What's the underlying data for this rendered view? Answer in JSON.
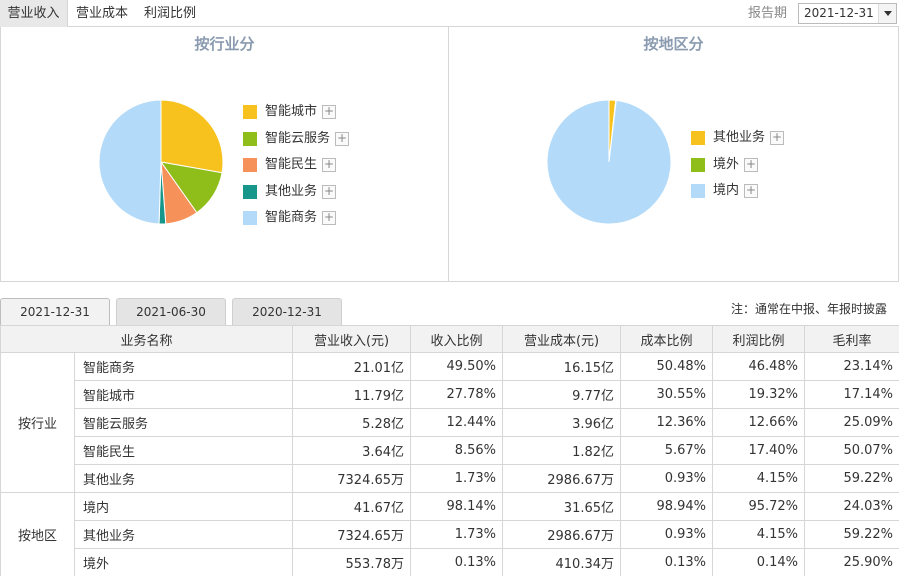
{
  "top_tabs": [
    "营业收入",
    "营业成本",
    "利润比例"
  ],
  "period": {
    "label": "报告期",
    "value": "2021-12-31"
  },
  "chart_data": [
    {
      "type": "pie",
      "title": "按行业分",
      "categories": [
        "智能城市",
        "智能云服务",
        "智能民生",
        "其他业务",
        "智能商务"
      ],
      "values": [
        27.78,
        12.44,
        8.56,
        1.73,
        49.5
      ],
      "colors": [
        "#f7c21e",
        "#8fbe1b",
        "#f7915a",
        "#17968c",
        "#b3dbf9"
      ]
    },
    {
      "type": "pie",
      "title": "按地区分",
      "categories": [
        "其他业务",
        "境外",
        "境内"
      ],
      "values": [
        1.73,
        0.13,
        98.14
      ],
      "colors": [
        "#f7c21e",
        "#8fbe1b",
        "#b3dbf9"
      ]
    }
  ],
  "date_tabs": [
    "2021-12-31",
    "2021-06-30",
    "2020-12-31"
  ],
  "note": "注：通常在中报、年报时披露",
  "table": {
    "headers": [
      "业务名称",
      "营业收入(元)",
      "收入比例",
      "营业成本(元)",
      "成本比例",
      "利润比例",
      "毛利率"
    ],
    "groups": [
      {
        "label": "按行业",
        "rows": [
          [
            "智能商务",
            "21.01亿",
            "49.50%",
            "16.15亿",
            "50.48%",
            "46.48%",
            "23.14%"
          ],
          [
            "智能城市",
            "11.79亿",
            "27.78%",
            "9.77亿",
            "30.55%",
            "19.32%",
            "17.14%"
          ],
          [
            "智能云服务",
            "5.28亿",
            "12.44%",
            "3.96亿",
            "12.36%",
            "12.66%",
            "25.09%"
          ],
          [
            "智能民生",
            "3.64亿",
            "8.56%",
            "1.82亿",
            "5.67%",
            "17.40%",
            "50.07%"
          ],
          [
            "其他业务",
            "7324.65万",
            "1.73%",
            "2986.67万",
            "0.93%",
            "4.15%",
            "59.22%"
          ]
        ]
      },
      {
        "label": "按地区",
        "rows": [
          [
            "境内",
            "41.67亿",
            "98.14%",
            "31.65亿",
            "98.94%",
            "95.72%",
            "24.03%"
          ],
          [
            "其他业务",
            "7324.65万",
            "1.73%",
            "2986.67万",
            "0.93%",
            "4.15%",
            "59.22%"
          ],
          [
            "境外",
            "553.78万",
            "0.13%",
            "410.34万",
            "0.13%",
            "0.14%",
            "25.90%"
          ]
        ]
      }
    ]
  },
  "icons": {
    "legend_expand": "plus-icon",
    "dropdown": "chevron-down-icon"
  }
}
